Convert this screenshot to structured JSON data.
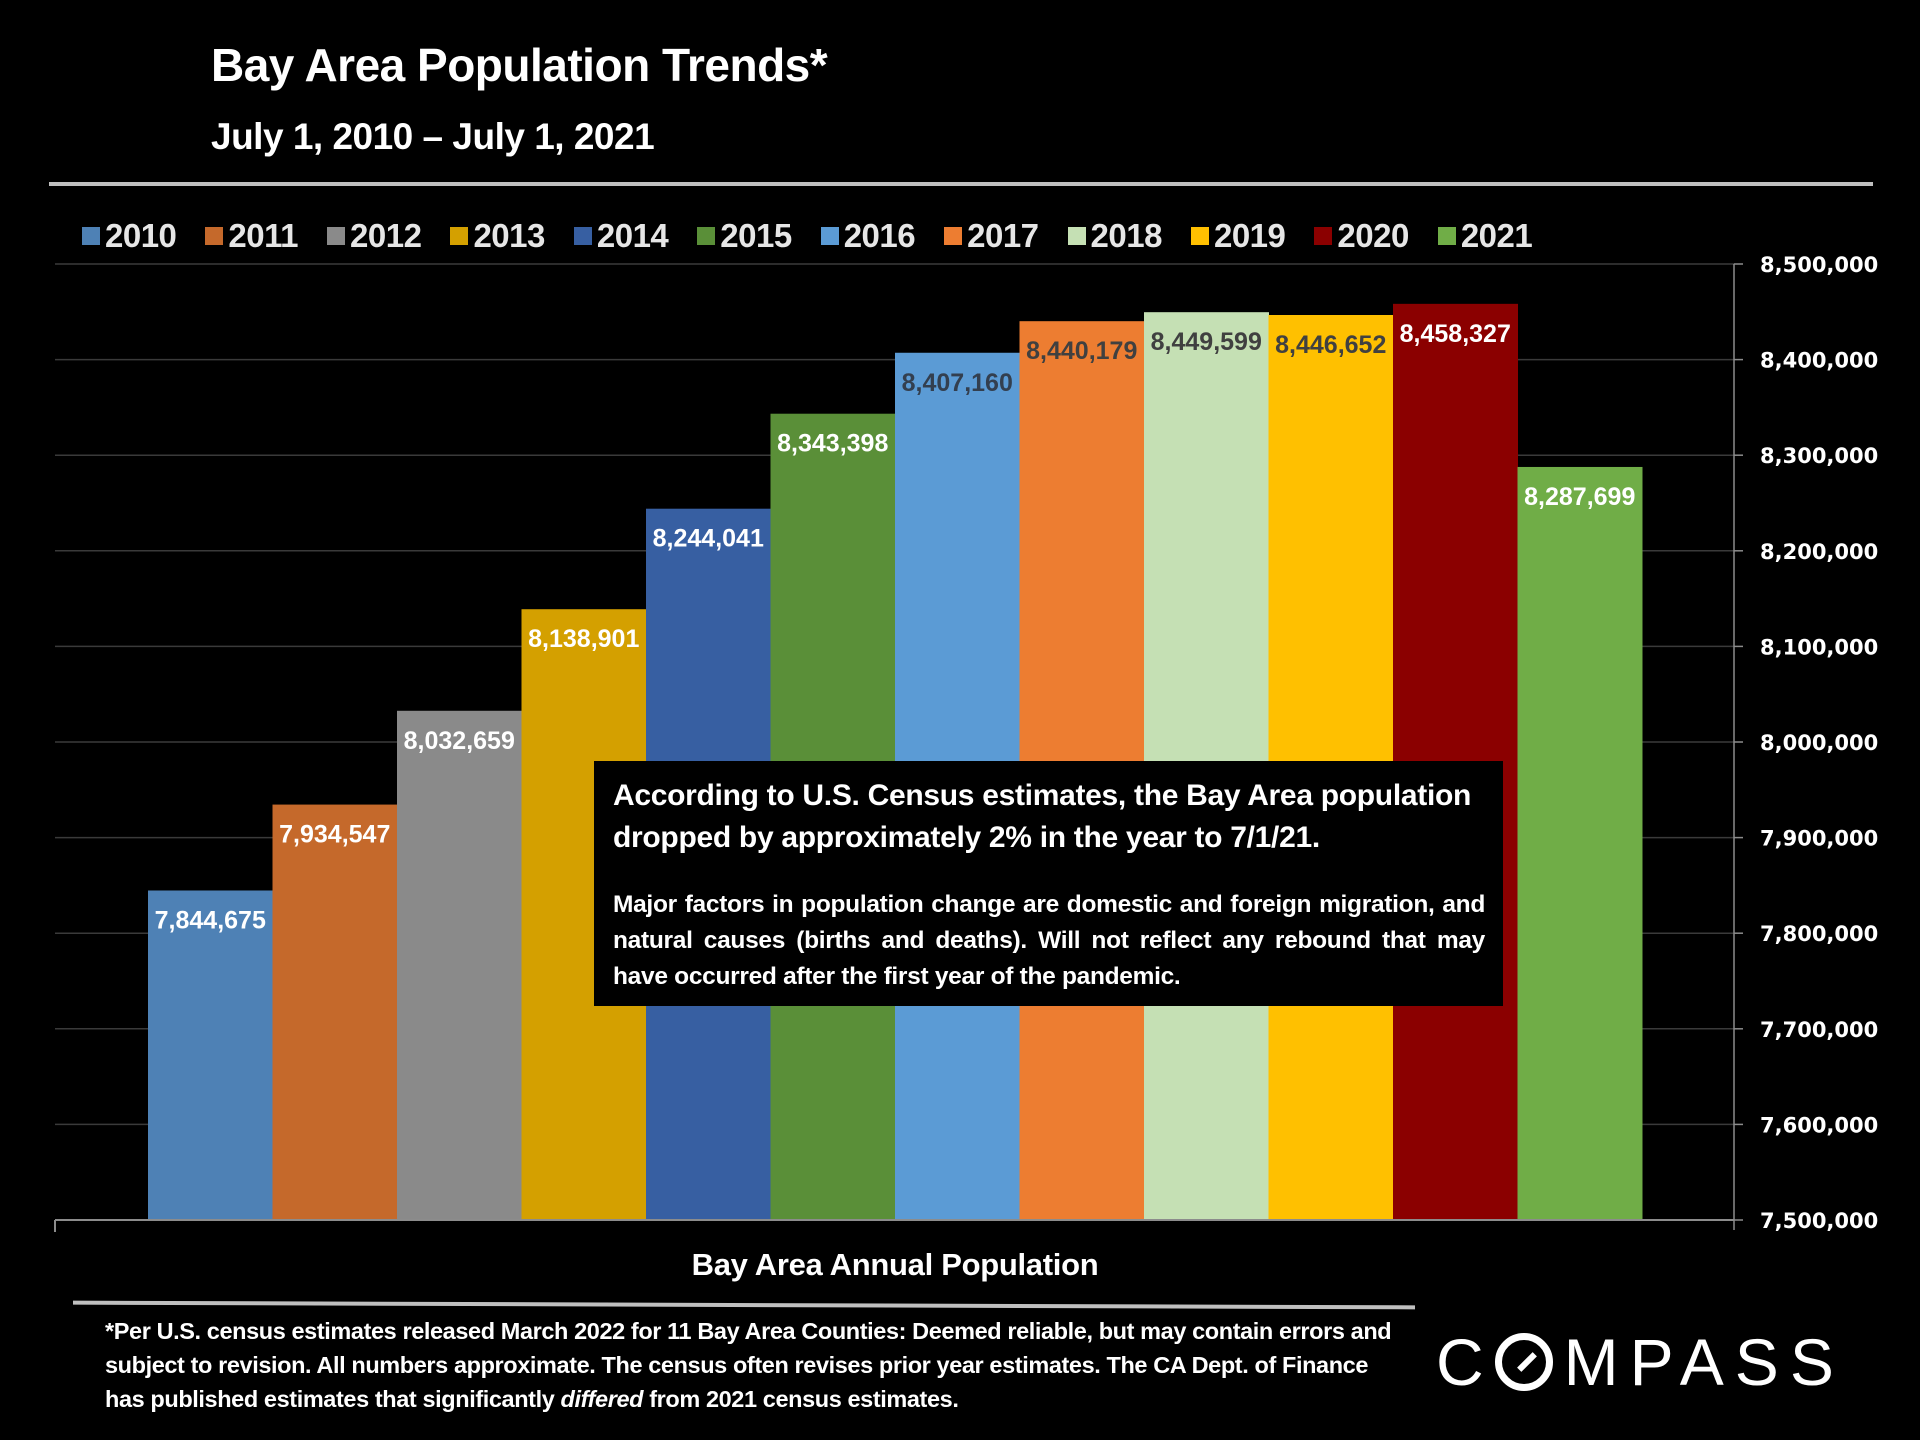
{
  "header": {
    "title": "Bay Area Population Trends*",
    "subtitle": "July 1, 2010 – July 1, 2021"
  },
  "annotation": {
    "headline": "According to U.S. Census estimates, the Bay Area population dropped by approximately 2% in the year to 7/1/21.",
    "body": "Major factors in population change are domestic and foreign migration, and natural causes (births and deaths). Will not reflect any rebound that may have occurred after the first year of the pandemic."
  },
  "footnote": {
    "part1": "*Per U.S. census estimates released March 2022 for 11 Bay Area Counties: Deemed reliable, but may contain errors and subject to revision.  All numbers  approximate. The census often revises prior year estimates. The CA Dept. of Finance has published estimates that significantly ",
    "italic": "differed",
    "part2": " from 2021 census estimates."
  },
  "logo": {
    "text_before": "C",
    "text_after": "MPASS",
    "icon": "compass-o-slash-icon"
  },
  "chart_data": {
    "type": "bar",
    "title": "Bay Area Population Trends*",
    "subtitle": "July 1, 2010 – July 1, 2021",
    "xlabel": "Bay Area Annual Population",
    "ylabel": "",
    "y_axis_side": "right",
    "ylim": [
      7500000,
      8500000
    ],
    "y_ticks": [
      7500000,
      7600000,
      7700000,
      7800000,
      7900000,
      8000000,
      8100000,
      8200000,
      8300000,
      8400000,
      8500000
    ],
    "y_tick_labels": [
      "7,500,000",
      "7,600,000",
      "7,700,000",
      "7,800,000",
      "7,900,000",
      "8,000,000",
      "8,100,000",
      "8,200,000",
      "8,300,000",
      "8,400,000",
      "8,500,000"
    ],
    "grid": true,
    "legend_position": "top",
    "categories": [
      "2010",
      "2011",
      "2012",
      "2013",
      "2014",
      "2015",
      "2016",
      "2017",
      "2018",
      "2019",
      "2020",
      "2021"
    ],
    "values": [
      7844675,
      7934547,
      8032659,
      8138901,
      8244041,
      8343398,
      8407160,
      8440179,
      8449599,
      8446652,
      8458327,
      8287699
    ],
    "data_labels": [
      "7,844,675",
      "7,934,547",
      "8,032,659",
      "8,138,901",
      "8,244,041",
      "8,343,398",
      "8,407,160",
      "8,440,179",
      "8,449,599",
      "8,446,652",
      "8,458,327",
      "8,287,699"
    ],
    "colors": [
      "#4e81b5",
      "#c5692b",
      "#8a8a8a",
      "#d4a000",
      "#375fa2",
      "#5a8f38",
      "#5b9bd5",
      "#ed7d31",
      "#c5e0b4",
      "#ffc000",
      "#8b0000",
      "#70ad47"
    ],
    "label_colors": [
      "#ffffff",
      "#ffffff",
      "#ffffff",
      "#ffffff",
      "#ffffff",
      "#ffffff",
      "#333f4f",
      "#404040",
      "#404040",
      "#404040",
      "#ffffff",
      "#ffffff"
    ]
  }
}
